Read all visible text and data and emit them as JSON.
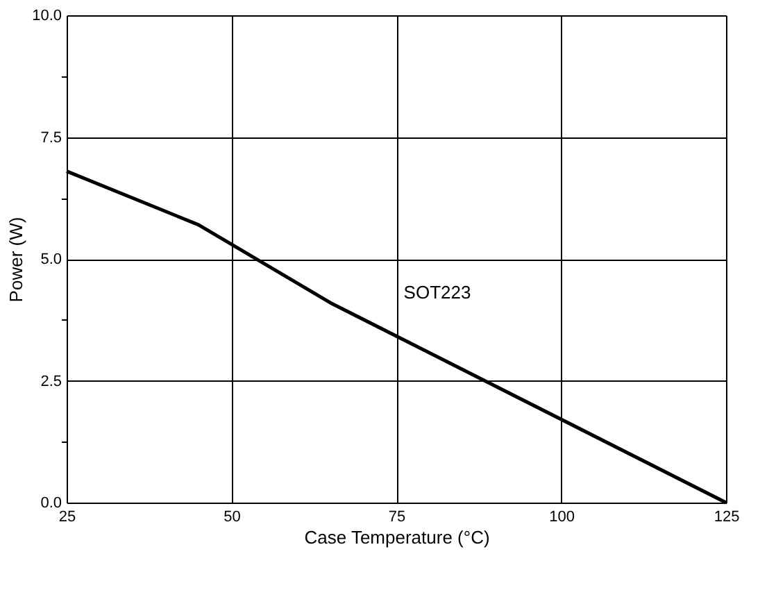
{
  "chart_data": {
    "type": "line",
    "xlabel": "Case Temperature (°C)",
    "ylabel": "Power (W)",
    "xlim": [
      25,
      125
    ],
    "xticks": [
      25,
      50,
      75,
      100,
      125
    ],
    "ylim": [
      0,
      10
    ],
    "yticks": [
      {
        "value": 0,
        "label": "0.0"
      },
      {
        "value": 1.25,
        "label": null
      },
      {
        "value": 2.5,
        "label": "2.5"
      },
      {
        "value": 3.75,
        "label": null
      },
      {
        "value": 5,
        "label": "5.0"
      },
      {
        "value": 6.25,
        "label": null
      },
      {
        "value": 7.5,
        "label": "7.5"
      },
      {
        "value": 8.75,
        "label": null
      },
      {
        "value": 10,
        "label": "10.0"
      }
    ],
    "grid": true,
    "marker": "none",
    "line_style": "solid",
    "series": [
      {
        "color": "#000000",
        "x": [
          25,
          45,
          65,
          125
        ],
        "values": [
          6.8,
          5.7,
          4.1,
          0
        ]
      }
    ],
    "annotations": [
      "SOT223"
    ]
  }
}
